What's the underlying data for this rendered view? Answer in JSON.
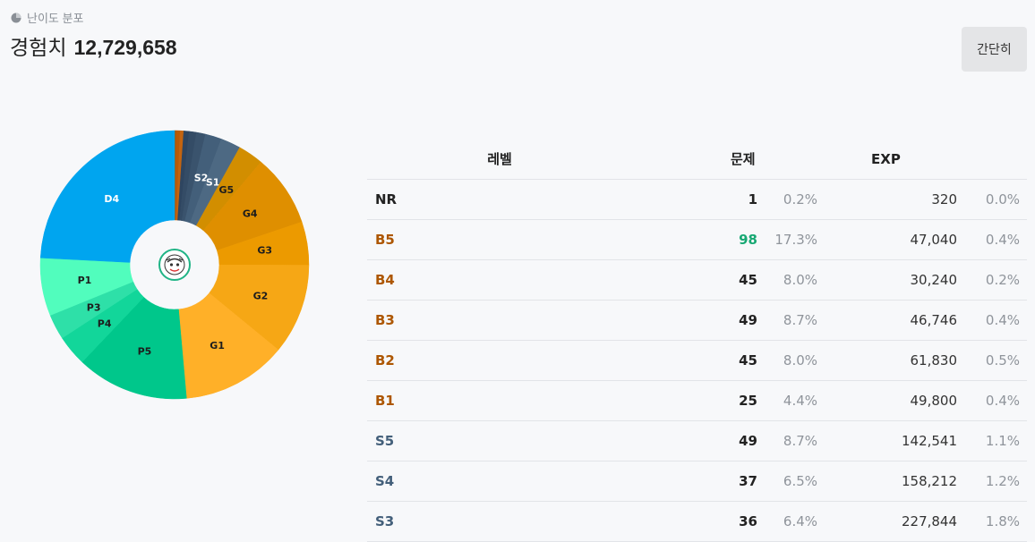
{
  "header": {
    "section_label": "난이도 분포",
    "section_icon": "pie-chart-icon",
    "exp_label": "경험치",
    "exp_value": "12,729,658"
  },
  "toggle": {
    "label": "간단히"
  },
  "donut": {
    "center_icon": "user-avatar-icon",
    "segments": [
      {
        "label": "",
        "count": 1,
        "color": "#ad5600"
      },
      {
        "label": "",
        "count": 2,
        "color": "#b85a08"
      },
      {
        "label": "",
        "count": 2,
        "color": "#c46410"
      },
      {
        "label": "",
        "count": 3,
        "color": "#2e4560"
      },
      {
        "label": "",
        "count": 4,
        "color": "#344c66"
      },
      {
        "label": "",
        "count": 5,
        "color": "#3a536d"
      },
      {
        "label": "S2",
        "count": 9,
        "color": "#435f7a"
      },
      {
        "label": "S1",
        "count": 11,
        "color": "#4d6983"
      },
      {
        "label": "G5",
        "count": 14,
        "color": "#d28e00"
      },
      {
        "label": "G4",
        "count": 40,
        "color": "#df8f00"
      },
      {
        "label": "G3",
        "count": 24,
        "color": "#ec9a00"
      },
      {
        "label": "G2",
        "count": 50,
        "color": "#f6a715"
      },
      {
        "label": "G1",
        "count": 58,
        "color": "#ffb028"
      },
      {
        "label": "P5",
        "count": 62,
        "color": "#00c78b"
      },
      {
        "label": "P4",
        "count": 17,
        "color": "#12d69a"
      },
      {
        "label": "P3",
        "count": 14,
        "color": "#2ee0a8"
      },
      {
        "label": "P1",
        "count": 32,
        "color": "#51fdbd"
      },
      {
        "label": "D4",
        "count": 111,
        "color": "#00a5ef"
      }
    ]
  },
  "table": {
    "headers": {
      "level": "레벨",
      "count": "문제",
      "exp": "EXP"
    },
    "rows": [
      {
        "level": "NR",
        "tier": "nr",
        "count": "1",
        "pct": "0.2%",
        "exp": "320",
        "exp_pct": "0.0%",
        "highlight": false
      },
      {
        "level": "B5",
        "tier": "bronze",
        "count": "98",
        "pct": "17.3%",
        "exp": "47,040",
        "exp_pct": "0.4%",
        "highlight": true
      },
      {
        "level": "B4",
        "tier": "bronze",
        "count": "45",
        "pct": "8.0%",
        "exp": "30,240",
        "exp_pct": "0.2%",
        "highlight": false
      },
      {
        "level": "B3",
        "tier": "bronze",
        "count": "49",
        "pct": "8.7%",
        "exp": "46,746",
        "exp_pct": "0.4%",
        "highlight": false
      },
      {
        "level": "B2",
        "tier": "bronze",
        "count": "45",
        "pct": "8.0%",
        "exp": "61,830",
        "exp_pct": "0.5%",
        "highlight": false
      },
      {
        "level": "B1",
        "tier": "bronze",
        "count": "25",
        "pct": "4.4%",
        "exp": "49,800",
        "exp_pct": "0.4%",
        "highlight": false
      },
      {
        "level": "S5",
        "tier": "silver",
        "count": "49",
        "pct": "8.7%",
        "exp": "142,541",
        "exp_pct": "1.1%",
        "highlight": false
      },
      {
        "level": "S4",
        "tier": "silver",
        "count": "37",
        "pct": "6.5%",
        "exp": "158,212",
        "exp_pct": "1.2%",
        "highlight": false
      },
      {
        "level": "S3",
        "tier": "silver",
        "count": "36",
        "pct": "6.4%",
        "exp": "227,844",
        "exp_pct": "1.8%",
        "highlight": false
      }
    ]
  }
}
